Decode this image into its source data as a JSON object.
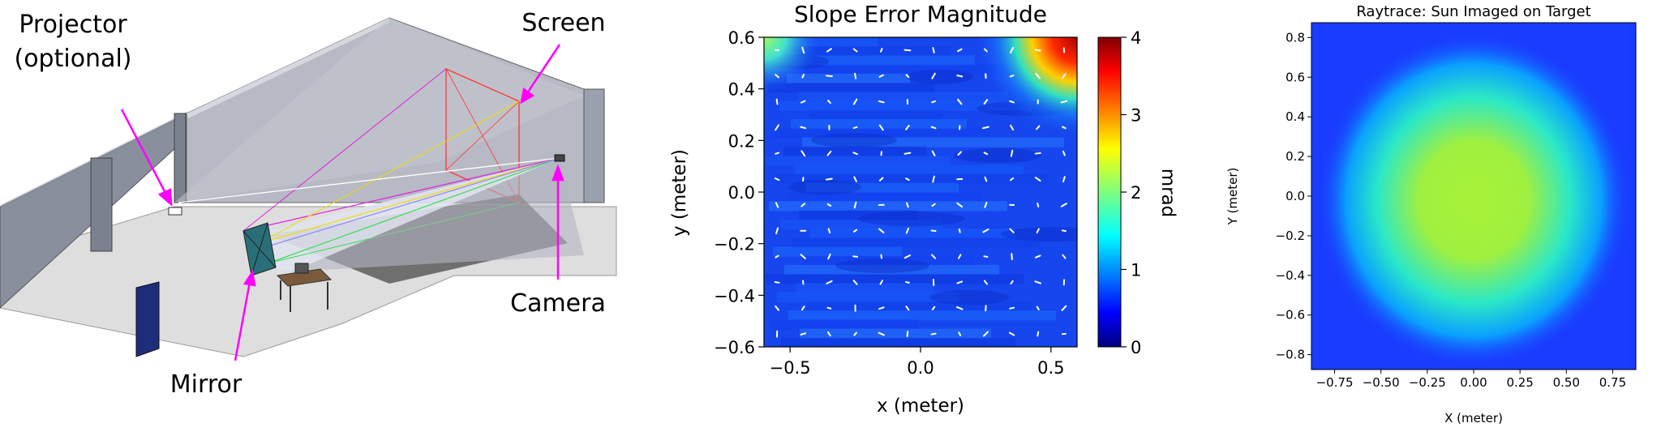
{
  "scene": {
    "labels": {
      "projector_line1": "Projector",
      "projector_line2": "(optional)",
      "screen": "Screen",
      "camera": "Camera",
      "mirror": "Mirror"
    },
    "colors": {
      "annotation": "#ff00ff"
    }
  },
  "chart_data": [
    {
      "type": "heatmap",
      "title": "Slope Error Magnitude",
      "xlabel": "x (meter)",
      "ylabel": "y (meter)",
      "xlim": [
        -0.6,
        0.6
      ],
      "ylim": [
        -0.6,
        0.6
      ],
      "xticks": [
        -0.5,
        0.0,
        0.5
      ],
      "xtick_labels": [
        "−0.5",
        "0.0",
        "0.5"
      ],
      "yticks": [
        0.6,
        0.4,
        0.2,
        0.0,
        -0.2,
        -0.4,
        -0.6
      ],
      "ytick_labels": [
        "0.6",
        "0.4",
        "0.2",
        "0.0",
        "−0.2",
        "−0.4",
        "−0.6"
      ],
      "colorbar": {
        "label": "mrad",
        "range": [
          0,
          4
        ],
        "ticks": [
          0,
          1,
          2,
          3,
          4
        ],
        "tick_labels": [
          "0",
          "1",
          "2",
          "3",
          "4"
        ],
        "colormap": "jet"
      },
      "overlay": "white quiver arrows (slope error direction)",
      "hotspots": [
        {
          "x": 0.55,
          "y": 0.58,
          "value": 3.8
        },
        {
          "x": -0.55,
          "y": 0.6,
          "value": 1.8
        }
      ],
      "typical_value": 0.7
    },
    {
      "type": "heatmap",
      "title": "Raytrace: Sun Imaged on Target",
      "xlabel": "X (meter)",
      "ylabel": "Y (meter)",
      "xlim": [
        -0.875,
        0.875
      ],
      "ylim": [
        -0.875,
        0.875
      ],
      "xticks": [
        -0.75,
        -0.5,
        -0.25,
        0.0,
        0.25,
        0.5,
        0.75
      ],
      "xtick_labels": [
        "−0.75",
        "−0.50",
        "−0.25",
        "0.00",
        "0.25",
        "0.50",
        "0.75"
      ],
      "yticks": [
        0.8,
        0.6,
        0.4,
        0.2,
        0.0,
        -0.2,
        -0.4,
        -0.6,
        -0.8
      ],
      "ytick_labels": [
        "0.8",
        "0.6",
        "0.4",
        "0.2",
        "0.0",
        "−0.2",
        "−0.4",
        "−0.6",
        "−0.8"
      ],
      "colormap": "jet",
      "spot_center": [
        0.0,
        -0.02
      ],
      "spot_radius": 0.42
    }
  ]
}
